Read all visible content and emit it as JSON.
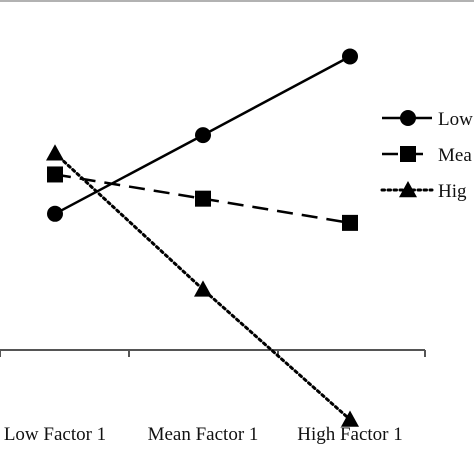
{
  "chart_data": {
    "type": "line",
    "categories": [
      "Low Factor 1",
      "Mean Factor 1",
      "High Factor 1"
    ],
    "series": [
      {
        "name": "Low",
        "values": [
          4.3,
          5.6,
          6.9
        ],
        "marker": "circle",
        "dash": "solid"
      },
      {
        "name": "Mea",
        "values": [
          4.95,
          4.55,
          4.15
        ],
        "marker": "square",
        "dash": "dashed"
      },
      {
        "name": "Hig",
        "values": [
          5.3,
          3.05,
          0.9
        ],
        "marker": "triangle",
        "dash": "dotted"
      }
    ],
    "ylim": [
      0,
      7.8
    ],
    "x_axis_at": 1.9,
    "grid": false,
    "legend": "right",
    "colors": {
      "line": "#000000",
      "axis": "#555555",
      "text": "#111111"
    }
  }
}
